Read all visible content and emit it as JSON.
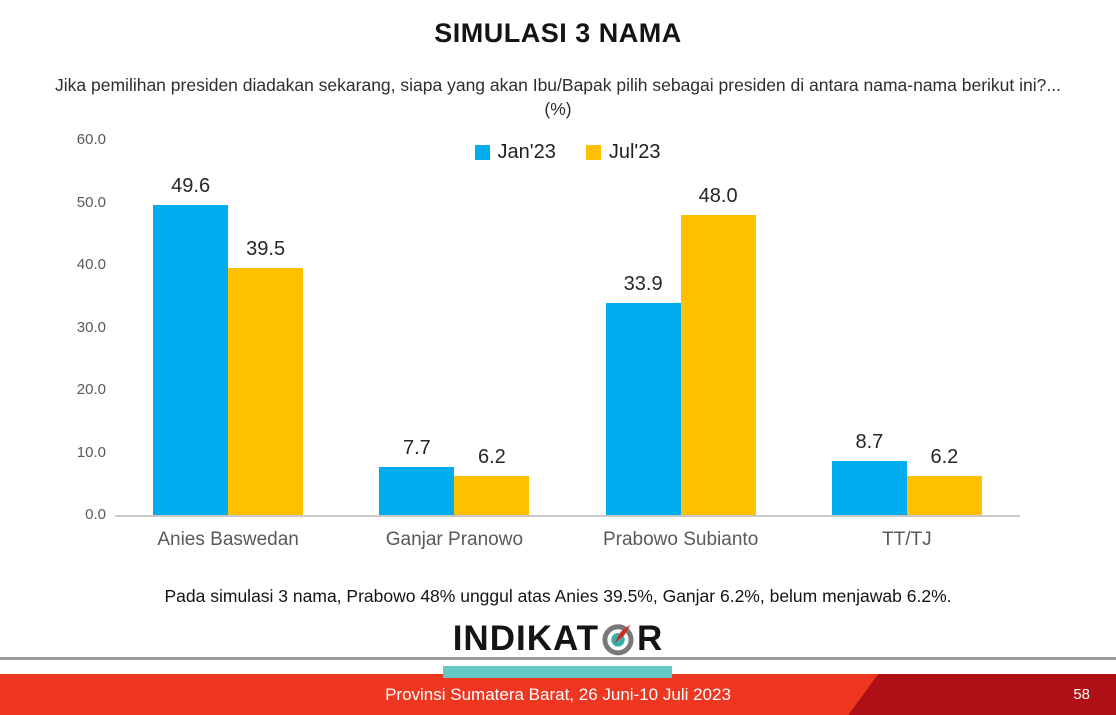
{
  "slide": {
    "title": "SIMULASI 3 NAMA",
    "subtitle": "Jika pemilihan presiden diadakan sekarang, siapa yang akan Ibu/Bapak pilih sebagai presiden di antara nama-nama berikut ini?... (%)",
    "conclusion": "Pada simulasi 3 nama, Prabowo 48% unggul atas Anies 39.5%, Ganjar 6.2%, belum menjawab 6.2%.",
    "logo": {
      "text_before_o": "INDIKAT",
      "text_after_o": "R",
      "full_name": "INDIKATOR"
    },
    "footer": {
      "text": "Provinsi Sumatera Barat, 26 Juni-10 Juli 2023",
      "page_number": "58"
    }
  },
  "chart_data": {
    "type": "bar",
    "title": "SIMULASI 3 NAMA",
    "categories": [
      "Anies Baswedan",
      "Ganjar Pranowo",
      "Prabowo Subianto",
      "TT/TJ"
    ],
    "series": [
      {
        "name": "Jan'23",
        "color": "#00AEEF",
        "values": [
          49.6,
          7.7,
          33.9,
          8.7
        ]
      },
      {
        "name": "Jul'23",
        "color": "#FFC000",
        "values": [
          39.5,
          6.2,
          48.0,
          6.2
        ]
      }
    ],
    "ylim": [
      0,
      60
    ],
    "yticks": [
      "60.0",
      "50.0",
      "40.0",
      "30.0",
      "20.0",
      "10.0",
      "0.0"
    ],
    "ytick_step": 10,
    "grid": false,
    "legend_position": "top-center",
    "value_labels": true
  },
  "colors": {
    "series_jan23": "#00AEEF",
    "series_jul23": "#FFC000",
    "banner_red": "#EE3620",
    "banner_dark_red": "#B01015",
    "teal_bar": "#66C7C3",
    "divider_gray": "#9C9C9C",
    "axis_text": "#595959",
    "compass_ring": "#787878",
    "compass_center": "#3BAEA8",
    "compass_needle": "#D2281E"
  }
}
